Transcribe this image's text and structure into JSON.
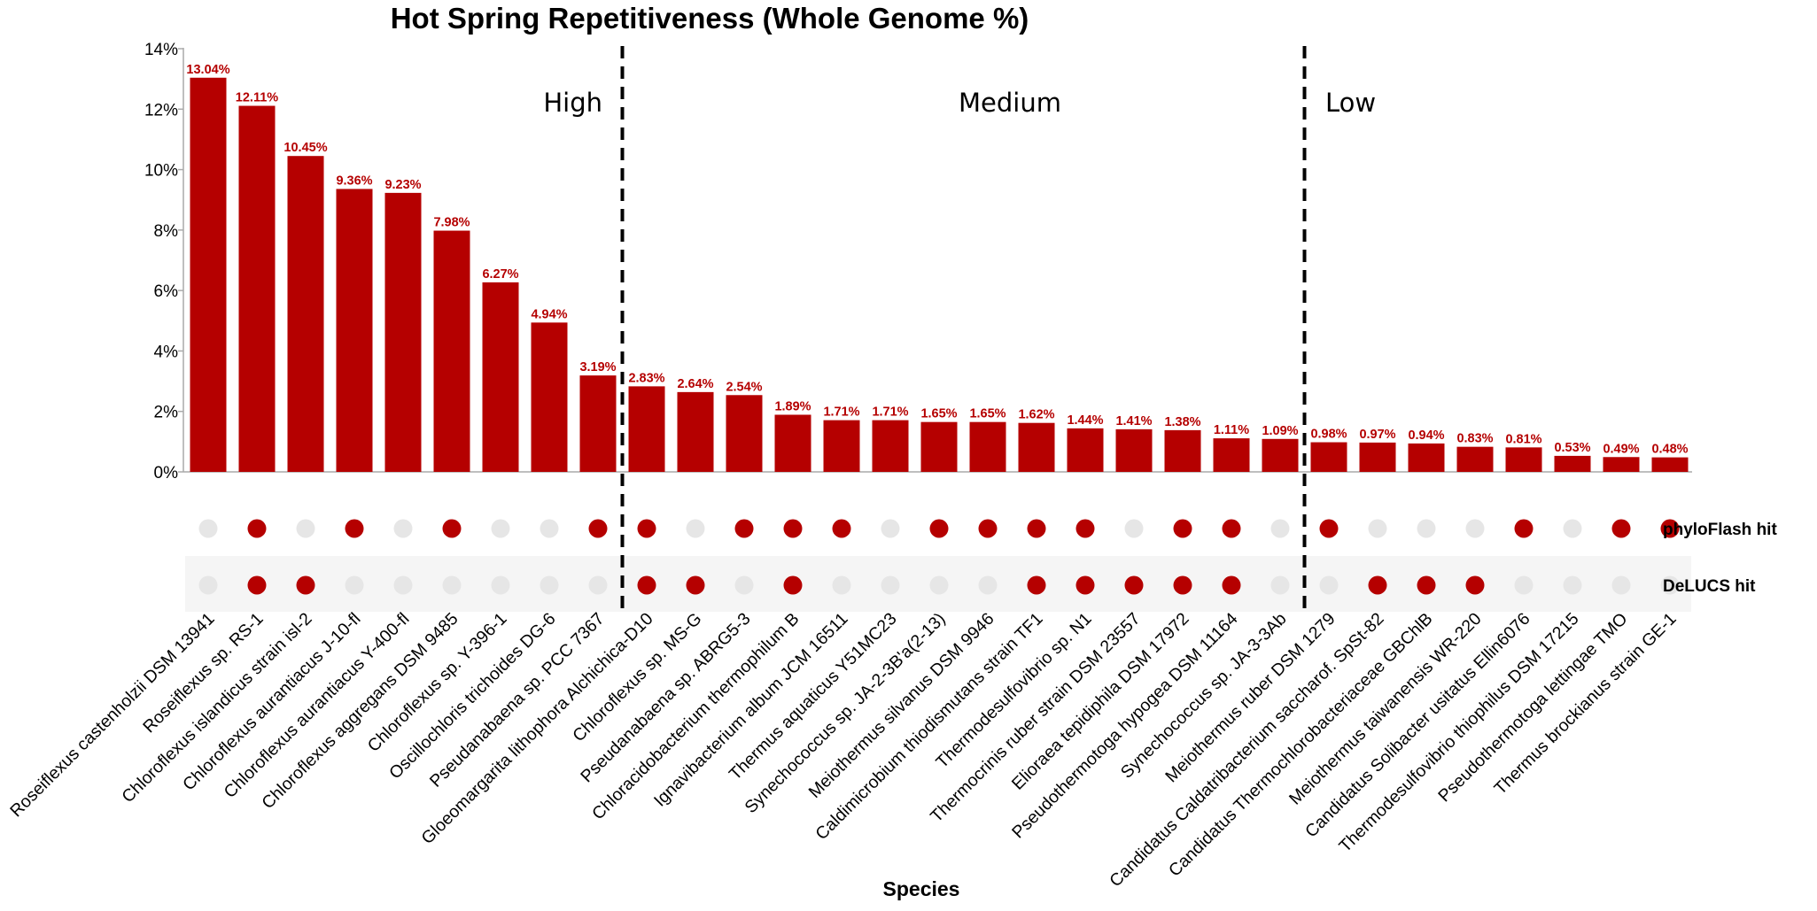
{
  "chart_data": {
    "type": "bar",
    "title": "Hot Spring Repetitiveness (Whole Genome %)",
    "xlabel": "Species",
    "ylabel": "",
    "ylim": [
      0,
      14
    ],
    "yticks": [
      "0%",
      "2%",
      "4%",
      "6%",
      "8%",
      "10%",
      "12%",
      "14%"
    ],
    "grid": false,
    "bar_color": "#b50000",
    "categories": [
      "Roseiflexus castenholzii DSM 13941",
      "Roseiflexus sp. RS-1",
      "Chloroflexus islandicus strain isl-2",
      "Chloroflexus aurantiacus J-10-fl",
      "Chloroflexus aurantiacus Y-400-fl",
      "Chloroflexus aggregans DSM 9485",
      "Chloroflexus sp. Y-396-1",
      "Oscillochloris trichoides DG-6",
      "Pseudanabaena sp. PCC 7367",
      "Gloeomargarita lithophora Alchichica-D10",
      "Chloroflexus sp. MS-G",
      "Pseudanabaena sp. ABRG5-3",
      "Chloracidobacterium thermophilum B",
      "Ignavibacterium album JCM 16511",
      "Thermus aquaticus Y51MC23",
      "Synechococcus sp. JA-2-3B'a(2-13)",
      "Meiothermus silvanus DSM 9946",
      "Caldimicrobium thiodismutans strain TF1",
      "Thermodesulfovibrio sp. N1",
      "Thermocrinis ruber strain DSM 23557",
      "Elioraea tepidiphila DSM 17972",
      "Pseudothermotoga hypogea DSM 11164",
      "Synechococcus sp. JA-3-3Ab",
      "Meiothermus ruber DSM 1279",
      "Candidatus Caldatribacterium saccharof. SpSt-82",
      "Candidatus Thermochlorobacteriaceae GBChlB",
      "Meiothermus taiwanensis WR-220",
      "Candidatus Solibacter usitatus Ellin6076",
      "Thermodesulfovibrio thiophilus DSM 17215",
      "Pseudothermotoga lettingae TMO",
      "Thermus brockianus strain GE-1"
    ],
    "values": [
      13.04,
      12.11,
      10.45,
      9.36,
      9.23,
      7.98,
      6.27,
      4.94,
      3.19,
      2.83,
      2.64,
      2.54,
      1.89,
      1.71,
      1.71,
      1.65,
      1.65,
      1.62,
      1.44,
      1.41,
      1.38,
      1.11,
      1.09,
      0.98,
      0.97,
      0.94,
      0.83,
      0.81,
      0.53,
      0.49,
      0.48
    ],
    "data_labels": [
      "13.04%",
      "12.11%",
      "10.45%",
      "9.36%",
      "9.23%",
      "7.98%",
      "6.27%",
      "4.94%",
      "3.19%",
      "2.83%",
      "2.64%",
      "2.54%",
      "1.89%",
      "1.71%",
      "1.71%",
      "1.65%",
      "1.65%",
      "1.62%",
      "1.44%",
      "1.41%",
      "1.38%",
      "1.11%",
      "1.09%",
      "0.98%",
      "0.97%",
      "0.94%",
      "0.83%",
      "0.81%",
      "0.53%",
      "0.49%",
      "0.48%"
    ],
    "zones": [
      {
        "label": "High",
        "start": 0,
        "end": 8
      },
      {
        "label": "Medium",
        "start": 9,
        "end": 22
      },
      {
        "label": "Low",
        "start": 23,
        "end": 30
      }
    ],
    "indicator_rows": [
      {
        "label": "phyloFlash hit",
        "hits": [
          0,
          1,
          0,
          1,
          0,
          1,
          0,
          0,
          1,
          1,
          0,
          1,
          1,
          1,
          0,
          1,
          1,
          1,
          1,
          0,
          1,
          1,
          0,
          1,
          0,
          0,
          0,
          1,
          0,
          1,
          1
        ]
      },
      {
        "label": "DeLUCS hit",
        "hits": [
          0,
          1,
          1,
          0,
          0,
          0,
          0,
          0,
          0,
          1,
          1,
          0,
          1,
          0,
          0,
          0,
          0,
          1,
          1,
          1,
          1,
          1,
          0,
          0,
          1,
          1,
          1,
          0,
          0,
          0,
          0
        ]
      }
    ],
    "hit_color": "#b50000",
    "miss_color": "#e6e6e6"
  }
}
